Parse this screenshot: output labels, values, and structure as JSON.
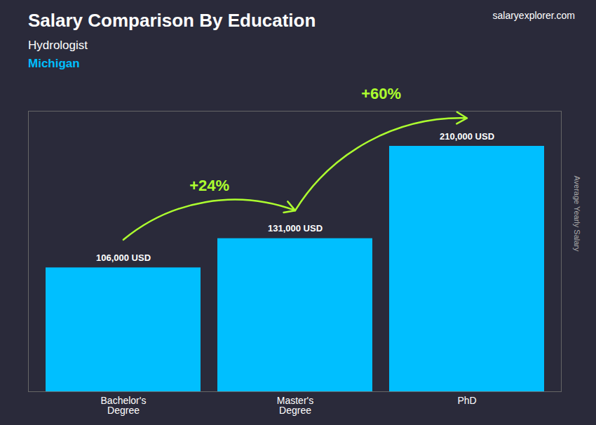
{
  "chart_data": {
    "type": "bar",
    "title": "Salary Comparison By Education",
    "subtitle": [
      "Hydrologist",
      "Michigan"
    ],
    "caption": "salaryexplorer.com",
    "categories": [
      "Bachelor's\nDegree",
      "Master's\nDegree",
      "PhD"
    ],
    "values": [
      106000,
      131000,
      210000
    ],
    "value_labels": [
      "106,000 USD",
      "131,000 USD",
      "210,000 USD"
    ],
    "data_labels": true,
    "color": "#00BFFF",
    "ylabel": "Average Yearly Salary",
    "ylim": [
      0,
      240000
    ],
    "tick_labels": "x",
    "annotations": [
      "+24%",
      "+60%"
    ]
  }
}
